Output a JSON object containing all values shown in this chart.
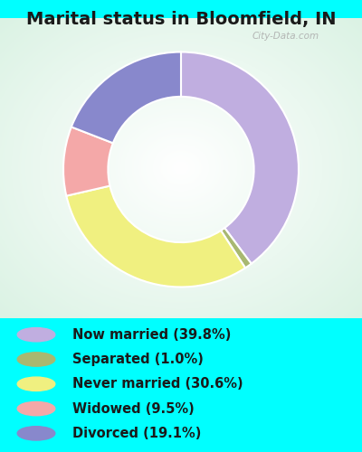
{
  "title": "Marital status in Bloomfield, IN",
  "slices": [
    39.8,
    1.0,
    30.6,
    9.5,
    19.1
  ],
  "labels": [
    "Now married (39.8%)",
    "Separated (1.0%)",
    "Never married (30.6%)",
    "Widowed (9.5%)",
    "Divorced (19.1%)"
  ],
  "colors": [
    "#c0aee0",
    "#a8b870",
    "#f0f080",
    "#f4a8a8",
    "#8888cc"
  ],
  "legend_colors": [
    "#c0aee0",
    "#a8b870",
    "#f0f080",
    "#f4a8a8",
    "#8888cc"
  ],
  "bg_cyan": "#00ffff",
  "bg_chart_color": "#c8e8d0",
  "title_fontsize": 14,
  "legend_fontsize": 10.5,
  "watermark": "City-Data.com",
  "donut_width": 0.38,
  "start_angle": 90
}
